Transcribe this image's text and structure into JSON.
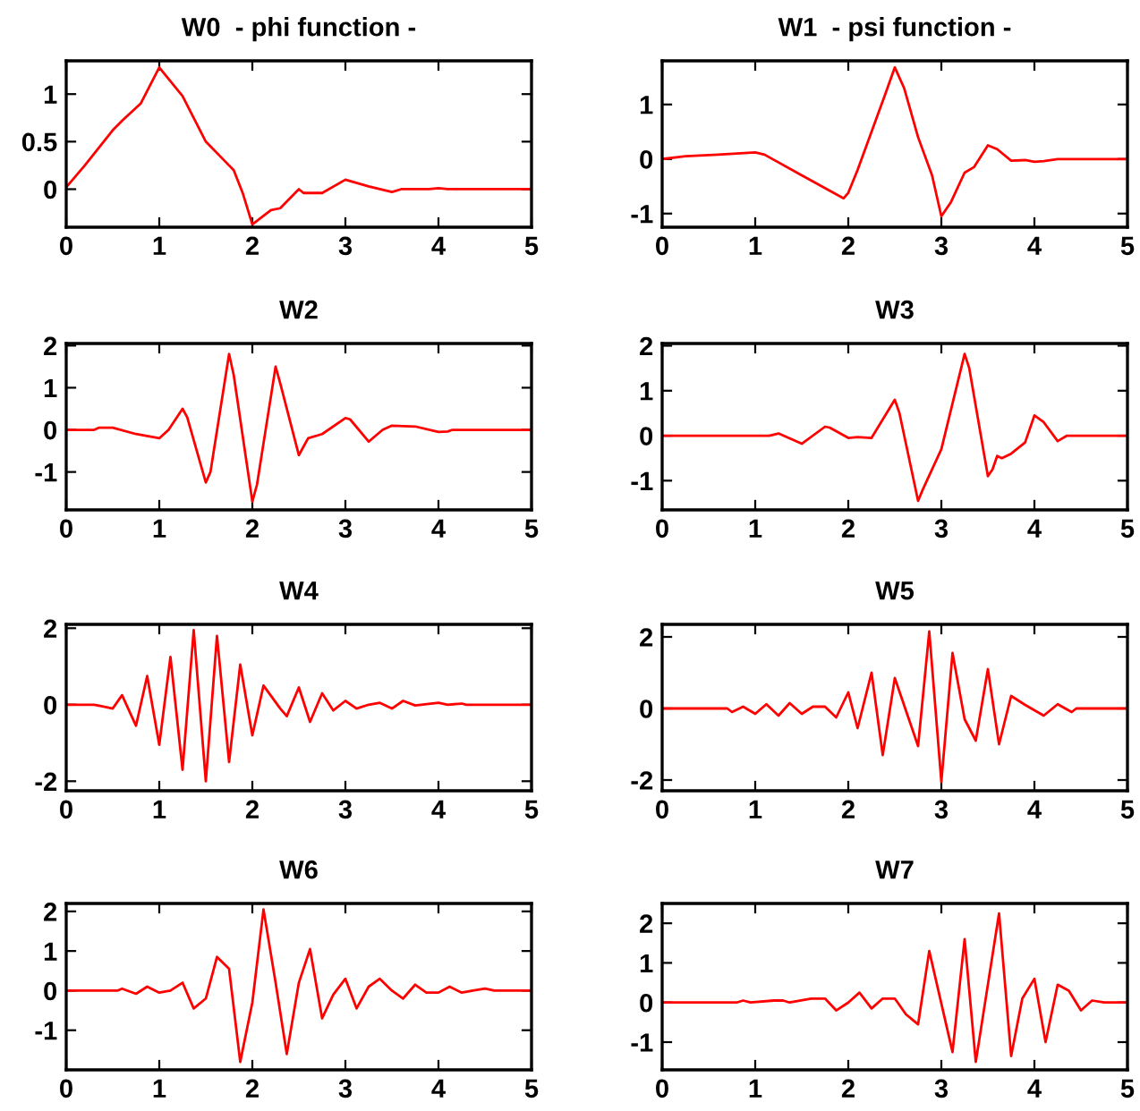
{
  "chart_data": [
    {
      "type": "line",
      "title": "W0  - phi function -",
      "color": "#ff0000",
      "xlim": [
        0,
        5
      ],
      "xticks": [
        0,
        1,
        2,
        3,
        4,
        5
      ],
      "ylim": [
        -0.4,
        1.35
      ],
      "yticks": [
        0,
        0.5,
        1
      ],
      "grid": false,
      "x": [
        0,
        0.2,
        0.5,
        0.6,
        0.8,
        1,
        1.05,
        1.25,
        1.5,
        1.7,
        1.8,
        1.9,
        2,
        2.2,
        2.3,
        2.5,
        2.55,
        2.75,
        3,
        3.25,
        3.5,
        3.6,
        3.9,
        4,
        4.1,
        5
      ],
      "values": [
        0.02,
        0.25,
        0.62,
        0.72,
        0.9,
        1.28,
        1.22,
        0.98,
        0.5,
        0.3,
        0.2,
        -0.05,
        -0.37,
        -0.22,
        -0.2,
        0.0,
        -0.04,
        -0.04,
        0.1,
        0.03,
        -0.03,
        0,
        0,
        0.01,
        0,
        0
      ]
    },
    {
      "type": "line",
      "title": "W1  - psi function -",
      "color": "#ff0000",
      "xlim": [
        0,
        5
      ],
      "xticks": [
        0,
        1,
        2,
        3,
        4,
        5
      ],
      "ylim": [
        -1.25,
        1.8
      ],
      "yticks": [
        -1,
        0,
        1
      ],
      "grid": false,
      "x": [
        0,
        0.25,
        0.6,
        1,
        1.1,
        1.5,
        1.95,
        2,
        2.1,
        2.25,
        2.4,
        2.5,
        2.6,
        2.75,
        2.9,
        3,
        3.1,
        3.25,
        3.35,
        3.5,
        3.6,
        3.75,
        3.9,
        4,
        4.1,
        4.25,
        5
      ],
      "values": [
        0,
        0.05,
        0.08,
        0.12,
        0.08,
        -0.3,
        -0.72,
        -0.62,
        -0.2,
        0.5,
        1.2,
        1.68,
        1.3,
        0.4,
        -0.3,
        -1.05,
        -0.8,
        -0.25,
        -0.15,
        0.25,
        0.18,
        -0.03,
        -0.02,
        -0.05,
        -0.04,
        0,
        0
      ]
    },
    {
      "type": "line",
      "title": "W2",
      "color": "#ff0000",
      "xlim": [
        0,
        5
      ],
      "xticks": [
        0,
        1,
        2,
        3,
        4,
        5
      ],
      "ylim": [
        -1.9,
        2.05
      ],
      "yticks": [
        -1,
        0,
        1,
        2
      ],
      "grid": false,
      "x": [
        0,
        0.3,
        0.35,
        0.5,
        0.75,
        1,
        1.1,
        1.25,
        1.3,
        1.5,
        1.55,
        1.75,
        1.8,
        2,
        2.05,
        2.25,
        2.3,
        2.5,
        2.6,
        2.75,
        3,
        3.05,
        3.25,
        3.4,
        3.5,
        3.75,
        4,
        4.1,
        4.15,
        5
      ],
      "values": [
        0,
        0,
        0.05,
        0.05,
        -0.1,
        -0.2,
        0.0,
        0.5,
        0.3,
        -1.25,
        -1.0,
        1.8,
        1.3,
        -1.7,
        -1.3,
        1.5,
        1.1,
        -0.6,
        -0.2,
        -0.1,
        0.28,
        0.25,
        -0.28,
        0.0,
        0.1,
        0.08,
        -0.05,
        -0.04,
        0,
        0
      ]
    },
    {
      "type": "line",
      "title": "W3",
      "color": "#ff0000",
      "xlim": [
        0,
        5
      ],
      "xticks": [
        0,
        1,
        2,
        3,
        4,
        5
      ],
      "ylim": [
        -1.65,
        2.05
      ],
      "yticks": [
        -1,
        0,
        1,
        2
      ],
      "grid": false,
      "x": [
        0,
        1.15,
        1.25,
        1.5,
        1.75,
        1.8,
        2,
        2.1,
        2.25,
        2.5,
        2.55,
        2.75,
        2.8,
        3,
        3.25,
        3.3,
        3.5,
        3.55,
        3.6,
        3.65,
        3.75,
        3.9,
        4,
        4.1,
        4.25,
        4.35,
        5
      ],
      "values": [
        0,
        0,
        0.05,
        -0.18,
        0.2,
        0.18,
        -0.05,
        -0.03,
        -0.05,
        0.8,
        0.5,
        -1.45,
        -1.2,
        -0.3,
        1.82,
        1.5,
        -0.9,
        -0.75,
        -0.45,
        -0.5,
        -0.4,
        -0.15,
        0.45,
        0.3,
        -0.12,
        0,
        0
      ]
    },
    {
      "type": "line",
      "title": "W4",
      "color": "#ff0000",
      "xlim": [
        0,
        5
      ],
      "xticks": [
        0,
        1,
        2,
        3,
        4,
        5
      ],
      "ylim": [
        -2.25,
        2.1
      ],
      "yticks": [
        -2,
        0,
        2
      ],
      "grid": false,
      "x": [
        0,
        0.3,
        0.4,
        0.5,
        0.6,
        0.75,
        0.87,
        1,
        1.12,
        1.25,
        1.37,
        1.5,
        1.62,
        1.75,
        1.87,
        2,
        2.12,
        2.3,
        2.37,
        2.5,
        2.62,
        2.75,
        2.87,
        3,
        3.12,
        3.25,
        3.37,
        3.5,
        3.62,
        3.75,
        4,
        4.1,
        4.25,
        4.3,
        5
      ],
      "values": [
        0,
        0,
        -0.05,
        -0.1,
        0.25,
        -0.55,
        0.75,
        -1.05,
        1.25,
        -1.7,
        1.95,
        -2.0,
        1.8,
        -1.5,
        1.05,
        -0.8,
        0.5,
        -0.1,
        -0.3,
        0.45,
        -0.45,
        0.3,
        -0.15,
        0.1,
        -0.1,
        0.0,
        0.05,
        -0.1,
        0.1,
        -0.02,
        0.05,
        0,
        0.03,
        0,
        0
      ]
    },
    {
      "type": "line",
      "title": "W5",
      "color": "#ff0000",
      "xlim": [
        0,
        5
      ],
      "xticks": [
        0,
        1,
        2,
        3,
        4,
        5
      ],
      "ylim": [
        -2.3,
        2.35
      ],
      "yticks": [
        -2,
        0,
        2
      ],
      "grid": false,
      "x": [
        0,
        0.7,
        0.75,
        0.87,
        1,
        1.12,
        1.25,
        1.37,
        1.5,
        1.62,
        1.75,
        1.87,
        2,
        2.1,
        2.25,
        2.37,
        2.5,
        2.75,
        2.87,
        3,
        3.12,
        3.25,
        3.37,
        3.5,
        3.62,
        3.75,
        3.9,
        4.1,
        4.25,
        4.4,
        4.45,
        5
      ],
      "values": [
        0,
        0,
        -0.1,
        0.05,
        -0.15,
        0.12,
        -0.2,
        0.15,
        -0.15,
        0.05,
        0.05,
        -0.25,
        0.45,
        -0.55,
        1.0,
        -1.3,
        0.85,
        -1.05,
        2.15,
        -2.05,
        1.55,
        -0.3,
        -0.9,
        1.1,
        -1.0,
        0.35,
        0.1,
        -0.2,
        0.12,
        -0.1,
        0,
        0
      ]
    },
    {
      "type": "line",
      "title": "W6",
      "color": "#ff0000",
      "xlim": [
        0,
        5
      ],
      "xticks": [
        0,
        1,
        2,
        3,
        4,
        5
      ],
      "ylim": [
        -2.0,
        2.2
      ],
      "yticks": [
        -1,
        0,
        1,
        2
      ],
      "grid": false,
      "x": [
        0,
        0.55,
        0.6,
        0.75,
        0.87,
        1,
        1.12,
        1.25,
        1.37,
        1.5,
        1.62,
        1.75,
        1.87,
        2,
        2.12,
        2.25,
        2.37,
        2.5,
        2.62,
        2.75,
        2.87,
        3,
        3.12,
        3.25,
        3.37,
        3.5,
        3.62,
        3.75,
        3.87,
        4,
        4.12,
        4.25,
        4.37,
        4.5,
        4.6,
        5
      ],
      "values": [
        0,
        0,
        0.05,
        -0.08,
        0.1,
        -0.05,
        0,
        0.2,
        -0.45,
        -0.2,
        0.85,
        0.55,
        -1.8,
        -0.3,
        2.05,
        0.2,
        -1.6,
        0.2,
        1.05,
        -0.7,
        -0.1,
        0.3,
        -0.45,
        0.1,
        0.3,
        0.0,
        -0.2,
        0.15,
        -0.05,
        -0.05,
        0.1,
        -0.05,
        0,
        0.05,
        0,
        0
      ]
    },
    {
      "type": "line",
      "title": "W7",
      "color": "#ff0000",
      "xlim": [
        0,
        5
      ],
      "xticks": [
        0,
        1,
        2,
        3,
        4,
        5
      ],
      "ylim": [
        -1.7,
        2.5
      ],
      "yticks": [
        -1,
        0,
        1,
        2
      ],
      "grid": false,
      "x": [
        0,
        0.8,
        0.87,
        0.95,
        1.2,
        1.3,
        1.37,
        1.6,
        1.75,
        1.87,
        2,
        2.12,
        2.25,
        2.37,
        2.5,
        2.62,
        2.75,
        2.87,
        3.12,
        3.25,
        3.37,
        3.62,
        3.75,
        3.87,
        4,
        4.12,
        4.25,
        4.37,
        4.5,
        4.62,
        4.75,
        5
      ],
      "values": [
        0,
        0,
        0.05,
        0,
        0.05,
        0.05,
        0,
        0.1,
        0.1,
        -0.2,
        0.0,
        0.25,
        -0.15,
        0.1,
        0.1,
        -0.3,
        -0.55,
        1.3,
        -1.25,
        1.6,
        -1.5,
        2.25,
        -1.35,
        0.1,
        0.6,
        -1.0,
        0.45,
        0.3,
        -0.2,
        0.05,
        0,
        0
      ]
    }
  ]
}
